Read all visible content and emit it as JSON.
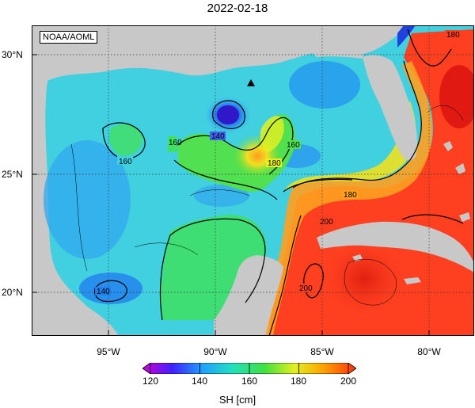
{
  "title": "2022-02-18",
  "credit": "NOAA/AOML",
  "map": {
    "lon_labels": [
      "95°W",
      "90°W",
      "85°W",
      "80°W"
    ],
    "lat_labels": [
      "30°N",
      "25°N",
      "20°N"
    ],
    "contour_labels": [
      "180",
      "160",
      "160",
      "140",
      "160",
      "180",
      "180",
      "200",
      "200",
      "140"
    ]
  },
  "colorbar": {
    "label": "SH [cm]",
    "ticks": [
      "120",
      "140",
      "160",
      "180",
      "200"
    ],
    "colors": [
      "#d000d0",
      "#4020ff",
      "#20a0ff",
      "#20e0c0",
      "#40e040",
      "#e0f020",
      "#ffa000",
      "#ff3010"
    ]
  }
}
